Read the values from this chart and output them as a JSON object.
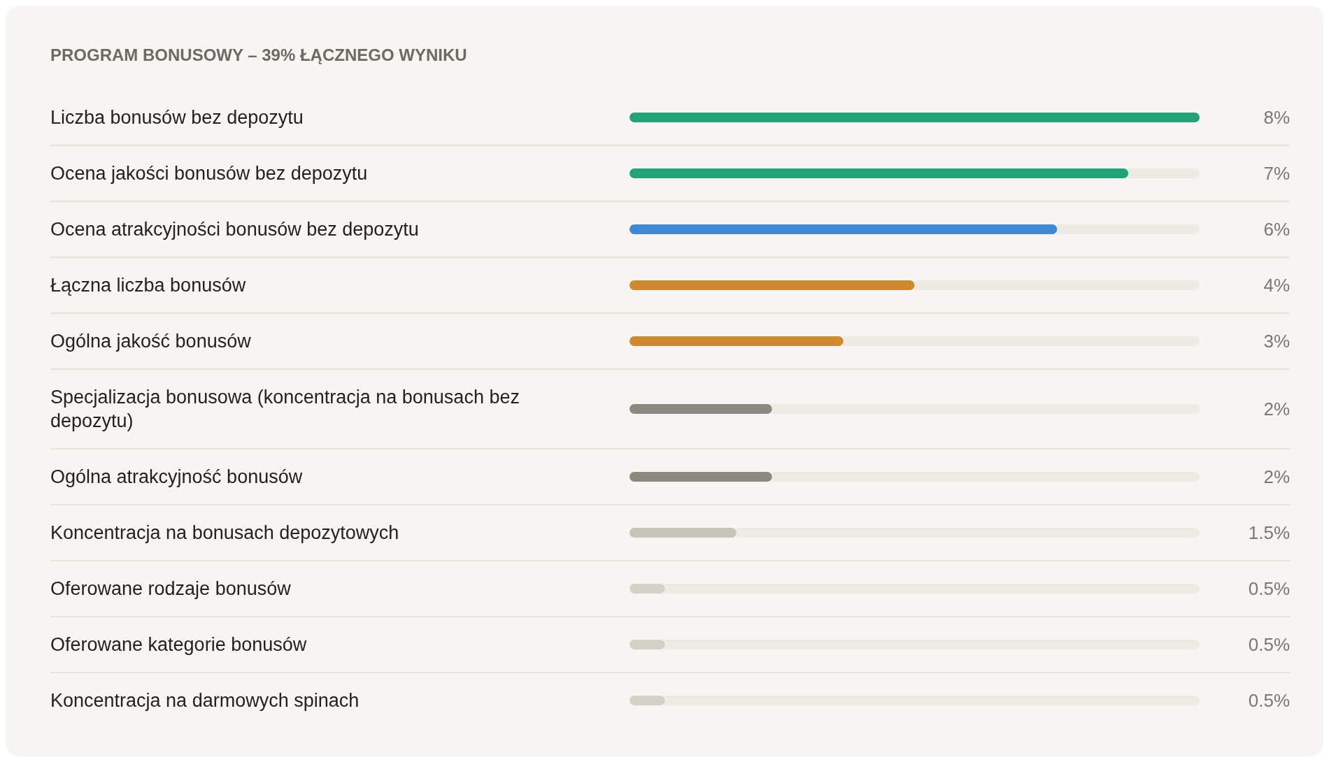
{
  "chart_data": {
    "type": "bar",
    "orientation": "horizontal",
    "title": "PROGRAM BONUSOWY – 39% ŁĄCZNEGO WYNIKU",
    "categories": [
      "Liczba bonusów bez depozytu",
      "Ocena jakości bonusów bez depozytu",
      "Ocena atrakcyjności bonusów bez depozytu",
      "Łączna liczba bonusów",
      "Ogólna jakość bonusów",
      "Specjalizacja bonusowa (koncentracja na bonusach bez depozytu)",
      "Ogólna atrakcyjność bonusów",
      "Koncentracja na bonusach depozytowych",
      "Oferowane rodzaje bonusów",
      "Oferowane kategorie bonusów",
      "Koncentracja na darmowych spinach"
    ],
    "values": [
      8,
      7,
      6,
      4,
      3,
      2,
      2,
      1.5,
      0.5,
      0.5,
      0.5
    ],
    "value_labels": [
      "8%",
      "7%",
      "6%",
      "4%",
      "3%",
      "2%",
      "2%",
      "1.5%",
      "0.5%",
      "0.5%",
      "0.5%"
    ],
    "colors": [
      "#21a37a",
      "#21a37a",
      "#3a8ad9",
      "#cf8a2e",
      "#cf8a2e",
      "#8a8a80",
      "#8a8a80",
      "#c6c5b9",
      "#d3d2c8",
      "#d3d2c8",
      "#d3d2c8"
    ]
  }
}
